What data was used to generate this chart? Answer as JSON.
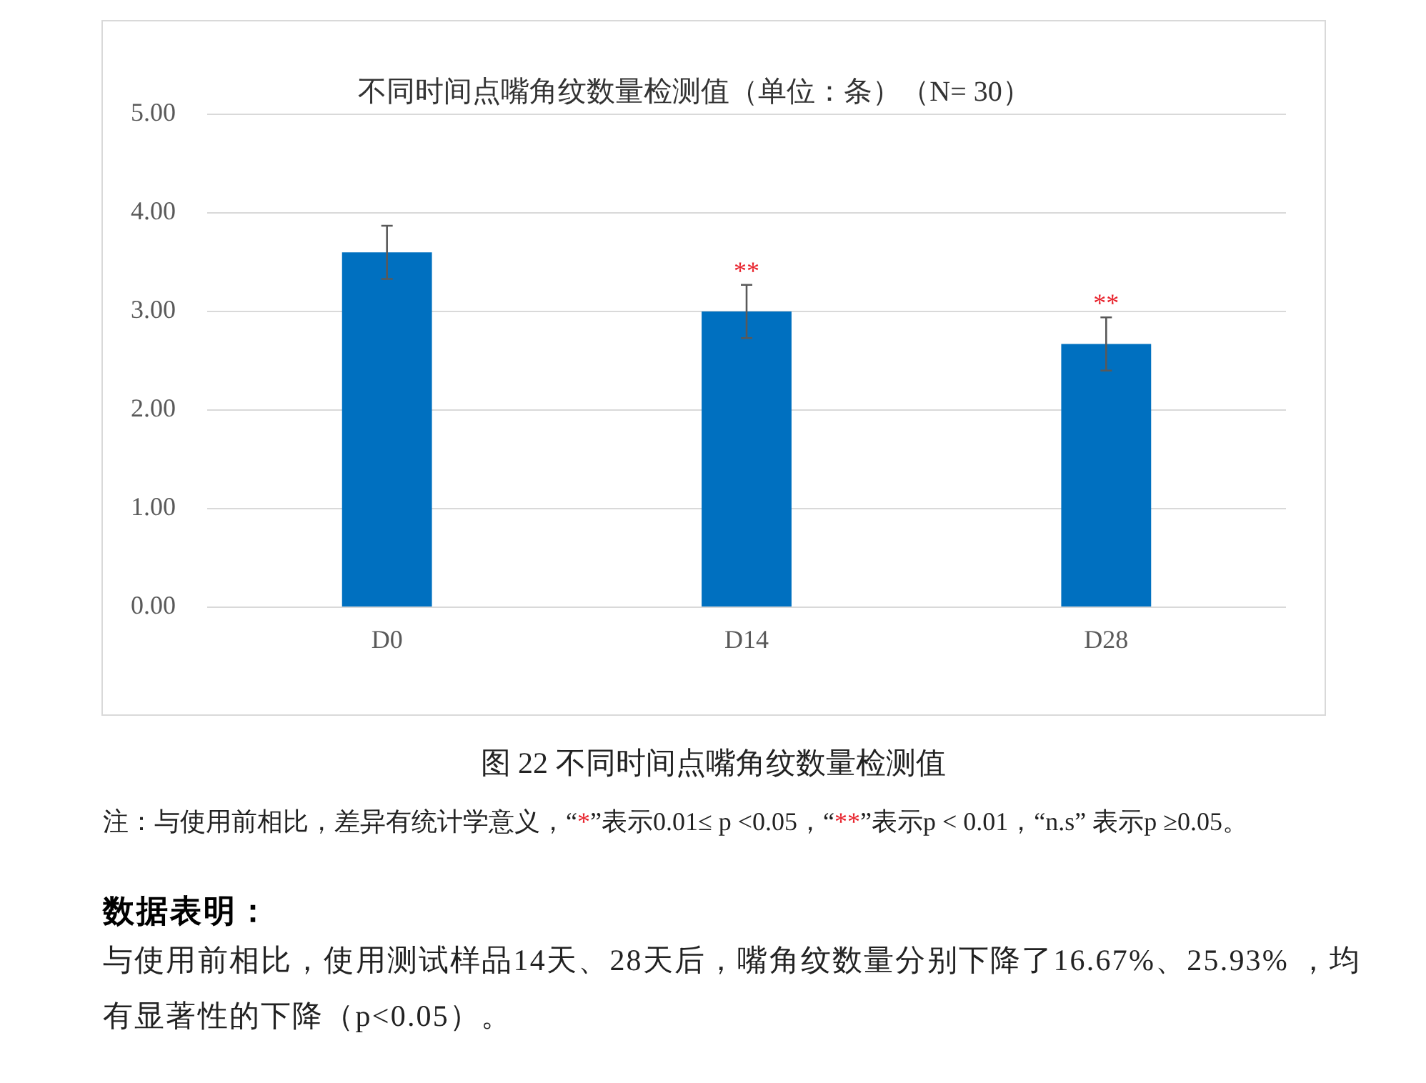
{
  "chart_data": {
    "type": "bar",
    "title": "不同时间点嘴角纹数量检测值（单位：条）（N= 30）",
    "categories": [
      "D0",
      "D14",
      "D28"
    ],
    "values": [
      3.6,
      3.0,
      2.67
    ],
    "errors": [
      0.27,
      0.27,
      0.27
    ],
    "color": "#0070c0",
    "ylim": [
      0,
      5
    ],
    "yticks": [
      {
        "value": 0,
        "label": "0.00"
      },
      {
        "value": 1,
        "label": "1.00"
      },
      {
        "value": 2,
        "label": "2.00"
      },
      {
        "value": 3,
        "label": "3.00"
      },
      {
        "value": 4,
        "label": "4.00"
      },
      {
        "value": 5,
        "label": "5.00"
      }
    ],
    "grid": "y",
    "annotations": [
      {
        "text": "**",
        "x": "D14",
        "y": 3.27
      },
      {
        "text": "**",
        "x": "D28",
        "y": 2.94
      },
      "图 22 不同时间点嘴角纹数量检测值",
      "注：与使用前相比，差异有统计学意义，“*”表示0.01≤ p <0.05，“**”表示p < 0.01，“n.s” 表示p ≥0.05。",
      "数据表明：",
      "与使用前相比，使用测试样品14天、28天后，嘴角纹数量分别下降了16.67%、25.93% ，均有显著性的下降（p<0.05）。"
    ]
  }
}
